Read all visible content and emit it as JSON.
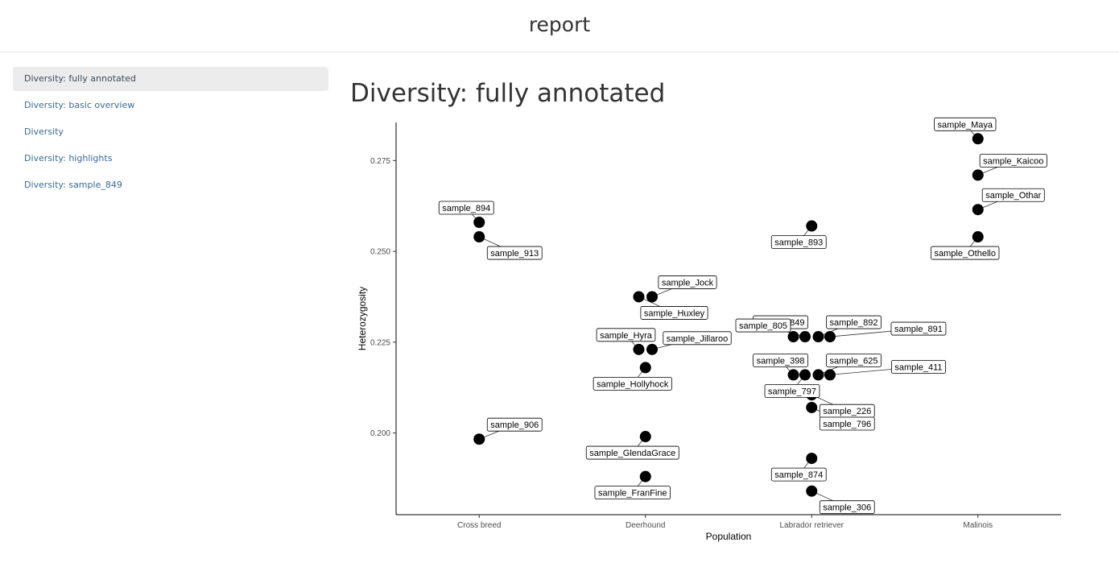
{
  "header": {
    "title": "report"
  },
  "sidebar": {
    "items": [
      {
        "label": "Diversity: fully annotated",
        "active": true
      },
      {
        "label": "Diversity: basic overview",
        "active": false
      },
      {
        "label": "Diversity",
        "active": false
      },
      {
        "label": "Diversity: highlights",
        "active": false
      },
      {
        "label": "Diversity: sample_849",
        "active": false
      }
    ]
  },
  "main": {
    "title": "Diversity: fully annotated"
  },
  "chart_data": {
    "type": "scatter",
    "xlabel": "Population",
    "ylabel": "Heterozygosity",
    "categories": [
      "Cross breed",
      "Deerhound",
      "Labrador retriever",
      "Malinois"
    ],
    "ylim": [
      0.1775,
      0.2855
    ],
    "yticks": [
      0.2,
      0.225,
      0.25,
      0.275
    ],
    "ytick_labels": [
      "0.200",
      "0.225",
      "0.250",
      "0.275"
    ],
    "grid": false,
    "points": [
      {
        "label": "sample_894",
        "category": "Cross breed",
        "jitter": 0.0,
        "y": 0.258,
        "label_pos": "upper-left"
      },
      {
        "label": "sample_913",
        "category": "Cross breed",
        "jitter": 0.0,
        "y": 0.254,
        "label_pos": "lower-right"
      },
      {
        "label": "sample_906",
        "category": "Cross breed",
        "jitter": 0.0,
        "y": 0.1983,
        "label_pos": "upper-right"
      },
      {
        "label": "sample_Jock",
        "category": "Deerhound",
        "jitter": 0.04,
        "y": 0.2375,
        "label_pos": "upper-right"
      },
      {
        "label": "sample_Huxley",
        "category": "Deerhound",
        "jitter": -0.04,
        "y": 0.2375,
        "label_pos": "lower-right"
      },
      {
        "label": "sample_Hyra",
        "category": "Deerhound",
        "jitter": -0.04,
        "y": 0.223,
        "label_pos": "upper-left"
      },
      {
        "label": "sample_Jillaroo",
        "category": "Deerhound",
        "jitter": 0.04,
        "y": 0.223,
        "label_pos": "right"
      },
      {
        "label": "sample_Hollyhock",
        "category": "Deerhound",
        "jitter": 0.0,
        "y": 0.218,
        "label_pos": "lower-left"
      },
      {
        "label": "sample_GlendaGrace",
        "category": "Deerhound",
        "jitter": 0.0,
        "y": 0.199,
        "label_pos": "lower-left"
      },
      {
        "label": "sample_FranFine",
        "category": "Deerhound",
        "jitter": 0.0,
        "y": 0.188,
        "label_pos": "lower-left"
      },
      {
        "label": "sample_893",
        "category": "Labrador retriever",
        "jitter": 0.0,
        "y": 0.257,
        "label_pos": "lower-left"
      },
      {
        "label": "sample_849",
        "category": "Labrador retriever",
        "jitter": -0.11,
        "y": 0.2265,
        "label_pos": "upper-left"
      },
      {
        "label": "sample_805",
        "category": "Labrador retriever",
        "jitter": -0.04,
        "y": 0.2265,
        "label_pos": "left"
      },
      {
        "label": "sample_892",
        "category": "Labrador retriever",
        "jitter": 0.04,
        "y": 0.2265,
        "label_pos": "upper-right"
      },
      {
        "label": "sample_891",
        "category": "Labrador retriever",
        "jitter": 0.11,
        "y": 0.2265,
        "label_pos": "far-right"
      },
      {
        "label": "sample_398",
        "category": "Labrador retriever",
        "jitter": -0.11,
        "y": 0.216,
        "label_pos": "upper-left"
      },
      {
        "label": "sample_625",
        "category": "Labrador retriever",
        "jitter": 0.04,
        "y": 0.216,
        "label_pos": "upper-right"
      },
      {
        "label": "sample_797",
        "category": "Labrador retriever",
        "jitter": -0.04,
        "y": 0.216,
        "label_pos": "lower-left"
      },
      {
        "label": "sample_411",
        "category": "Labrador retriever",
        "jitter": 0.11,
        "y": 0.216,
        "label_pos": "far-right"
      },
      {
        "label": "sample_226",
        "category": "Labrador retriever",
        "jitter": 0.0,
        "y": 0.2105,
        "label_pos": "lower-right"
      },
      {
        "label": "sample_796",
        "category": "Labrador retriever",
        "jitter": 0.0,
        "y": 0.207,
        "label_pos": "lower-right"
      },
      {
        "label": "sample_874",
        "category": "Labrador retriever",
        "jitter": 0.0,
        "y": 0.193,
        "label_pos": "lower-left"
      },
      {
        "label": "sample_306",
        "category": "Labrador retriever",
        "jitter": 0.0,
        "y": 0.184,
        "label_pos": "lower-right"
      },
      {
        "label": "sample_Maya",
        "category": "Malinois",
        "jitter": 0.0,
        "y": 0.281,
        "label_pos": "upper-left"
      },
      {
        "label": "sample_Kaicoo",
        "category": "Malinois",
        "jitter": 0.0,
        "y": 0.271,
        "label_pos": "upper-right"
      },
      {
        "label": "sample_Othar",
        "category": "Malinois",
        "jitter": 0.0,
        "y": 0.2615,
        "label_pos": "upper-right"
      },
      {
        "label": "sample_Othello",
        "category": "Malinois",
        "jitter": 0.0,
        "y": 0.254,
        "label_pos": "lower-left"
      }
    ]
  }
}
